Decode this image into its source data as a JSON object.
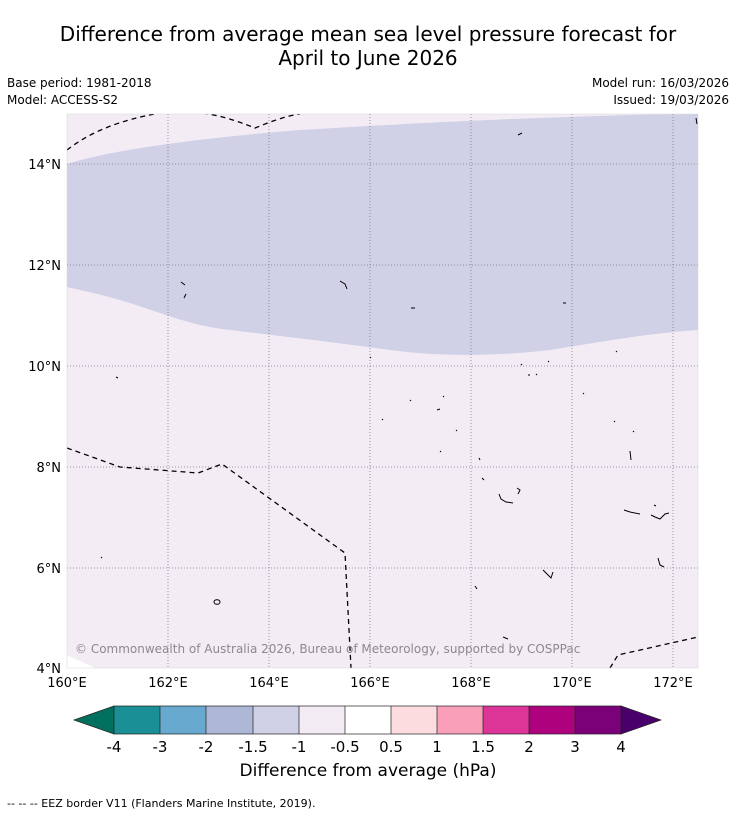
{
  "header": {
    "title_line1": "Difference from average mean sea level pressure forecast for",
    "title_line2": "April to June 2026",
    "base_period": "Base period: 1981-2018",
    "model": "Model: ACCESS-S2",
    "model_run": "Model run: 16/03/2026",
    "issued": "Issued: 19/03/2026"
  },
  "map": {
    "lon_labels": [
      "160°E",
      "162°E",
      "164°E",
      "166°E",
      "168°E",
      "170°E",
      "172°E"
    ],
    "lat_labels": [
      "14°N",
      "12°N",
      "10°N",
      "8°N",
      "6°N",
      "4°N"
    ],
    "copyright": "© Commonwealth of Australia 2026, Bureau of Meteorology, supported by COSPPac",
    "colors": {
      "background_band": "#f3ecf5",
      "negative_band": "#d0d1e6",
      "boundary": "#000000"
    }
  },
  "colorbar": {
    "ticks": [
      "-4",
      "-3",
      "-2",
      "-1.5",
      "-1",
      "-0.5",
      "0.5",
      "1",
      "1.5",
      "2",
      "3",
      "4"
    ],
    "colors": [
      "#02705f",
      "#1a9096",
      "#67a9cf",
      "#aeb7d5",
      "#d0d1e6",
      "#f3ecf5",
      "#ffffff",
      "#fcdcdf",
      "#f99fb9",
      "#dd3498",
      "#ad017e",
      "#7a0178",
      "#49006a"
    ],
    "label": "Difference from average (hPa)"
  },
  "footer": {
    "eez_text": "--  --  -- EEZ border V11 (Flanders Marine Institute, 2019)."
  }
}
